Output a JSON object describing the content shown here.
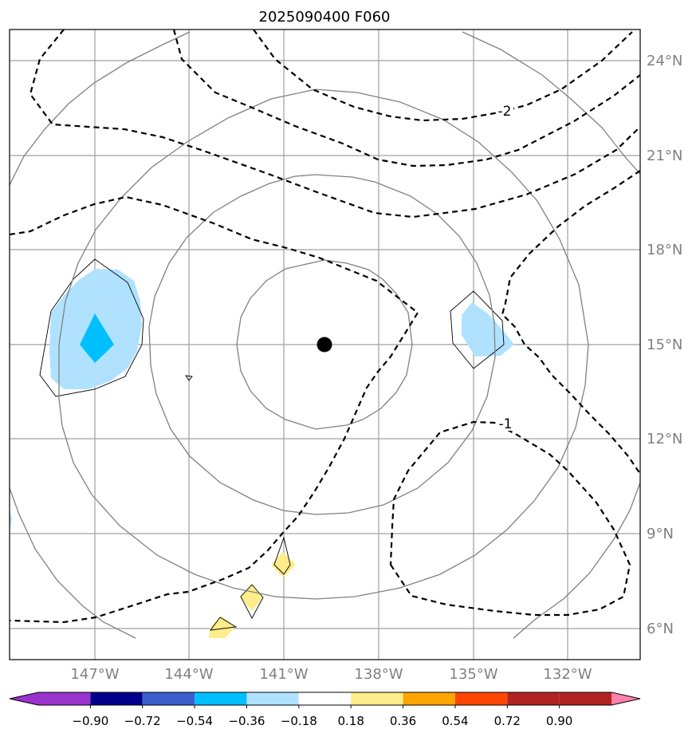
{
  "title": "2025090400 F060",
  "map": {
    "lat_labels": [
      "24°N",
      "21°N",
      "18°N",
      "15°N",
      "12°N",
      "9°N",
      "6°N"
    ],
    "lon_labels": [
      "147°W",
      "144°W",
      "141°W",
      "138°W",
      "135°W",
      "132°W"
    ],
    "contour_labels": [
      "-2",
      "-1"
    ],
    "storm_center": {
      "lat": 15.0,
      "lon": -139.75
    }
  },
  "colorbar": {
    "ticks": [
      "−0.90",
      "−0.72",
      "−0.54",
      "−0.36",
      "−0.18",
      "0.18",
      "0.36",
      "0.54",
      "0.72",
      "0.90"
    ],
    "colors": [
      "#9a32cd",
      "#00008b",
      "#3a5fcd",
      "#00bfff",
      "#b0e2ff",
      "#ffffff",
      "#ffec8b",
      "#ffa500",
      "#ff4500",
      "#b22222",
      "#ff82ab"
    ]
  },
  "colors": {
    "grid": "#a0a0a0",
    "range_rings": "#808080",
    "contour": "#000000",
    "light_blue": "#b0e2ff",
    "deep_sky_blue": "#00bfff",
    "light_yellow": "#ffec8b",
    "tick_label": "#808080"
  }
}
